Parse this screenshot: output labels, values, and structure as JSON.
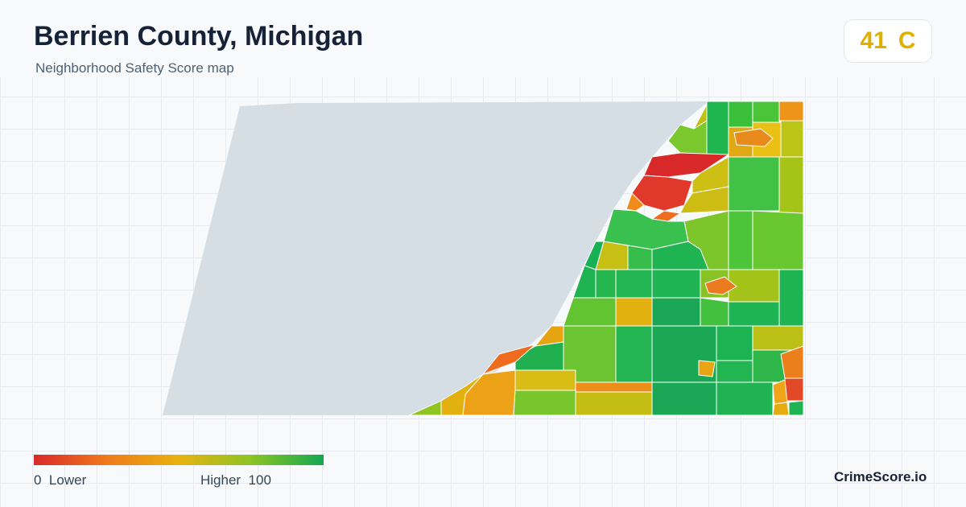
{
  "header": {
    "title": "Berrien County, Michigan",
    "subtitle": "Neighborhood Safety Score map"
  },
  "score": {
    "value": "41",
    "grade": "C",
    "color": "#e0b000"
  },
  "legend": {
    "low_value": "0",
    "low_label": "Lower",
    "high_label": "Higher",
    "high_value": "100",
    "gradient_colors": [
      "#d8282a",
      "#f07a1c",
      "#e7b210",
      "#8cc425",
      "#14a850"
    ]
  },
  "map": {
    "water_color": "#d6dee5",
    "background_color": "#f7f9fa"
  },
  "footer": {
    "brand": "CrimeScore.io"
  }
}
